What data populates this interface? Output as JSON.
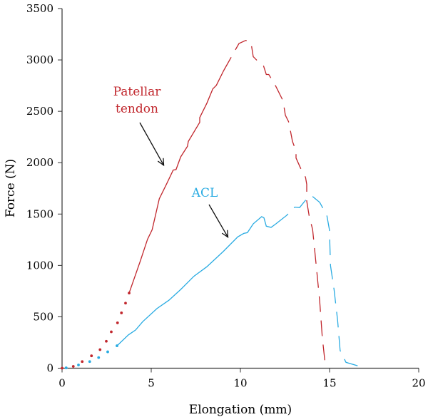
{
  "chart_data": {
    "type": "line",
    "title": "",
    "xlabel": "Elongation (mm)",
    "ylabel": "Force (N)",
    "xlim": [
      0,
      20
    ],
    "ylim": [
      0,
      3500
    ],
    "xticks": [
      0,
      5,
      10,
      15,
      20
    ],
    "yticks": [
      0,
      500,
      1000,
      1500,
      2000,
      2500,
      3000,
      3500
    ],
    "grid": false,
    "series": [
      {
        "name": "Patellar tendon",
        "color": "#c1272d",
        "dotted_points": [
          [
            0,
            0
          ],
          [
            0.63,
            17
          ],
          [
            1.13,
            64
          ],
          [
            1.65,
            120
          ],
          [
            2.13,
            180
          ],
          [
            2.48,
            262
          ],
          [
            2.76,
            354
          ],
          [
            3.11,
            441
          ],
          [
            3.33,
            538
          ],
          [
            3.56,
            633
          ],
          [
            3.76,
            731
          ]
        ],
        "solid_points": [
          [
            3.76,
            731
          ],
          [
            4.39,
            1045
          ],
          [
            4.79,
            1254
          ],
          [
            5.05,
            1347
          ],
          [
            5.45,
            1649
          ],
          [
            5.85,
            1789
          ],
          [
            6.23,
            1928
          ],
          [
            6.39,
            1933
          ],
          [
            6.65,
            2056
          ],
          [
            7.03,
            2160
          ],
          [
            7.08,
            2207
          ],
          [
            7.72,
            2393
          ],
          [
            7.72,
            2439
          ],
          [
            8.12,
            2579
          ],
          [
            8.45,
            2718
          ],
          [
            8.65,
            2753
          ],
          [
            9.05,
            2893
          ]
        ],
        "dashed_points": [
          [
            9.05,
            2893
          ],
          [
            9.92,
            3160
          ],
          [
            10.3,
            3190
          ],
          [
            10.59,
            3172
          ],
          [
            10.72,
            3032
          ],
          [
            11.12,
            2962
          ],
          [
            11.3,
            2940
          ],
          [
            11.45,
            2858
          ],
          [
            11.59,
            2858
          ],
          [
            11.99,
            2742
          ],
          [
            12.39,
            2602
          ],
          [
            12.52,
            2463
          ],
          [
            12.7,
            2400
          ],
          [
            12.79,
            2323
          ],
          [
            12.92,
            2207
          ],
          [
            13.12,
            2114
          ],
          [
            13.12,
            2045
          ],
          [
            13.39,
            1940
          ],
          [
            13.65,
            1858
          ],
          [
            13.72,
            1789
          ],
          [
            13.72,
            1626
          ],
          [
            13.85,
            1487
          ],
          [
            14.05,
            1347
          ],
          [
            14.25,
            999
          ],
          [
            14.45,
            650
          ],
          [
            14.59,
            301
          ],
          [
            14.75,
            45
          ]
        ]
      },
      {
        "name": "ACL",
        "color": "#29abe2",
        "dotted_points": [
          [
            0.23,
            3
          ],
          [
            0.92,
            31
          ],
          [
            1.55,
            64
          ],
          [
            2.05,
            103
          ],
          [
            2.56,
            159
          ],
          [
            3.08,
            218
          ]
        ],
        "solid_points": [
          [
            3.08,
            218
          ],
          [
            3.72,
            324
          ],
          [
            4.12,
            371
          ],
          [
            4.52,
            452
          ],
          [
            5.32,
            580
          ],
          [
            5.99,
            661
          ],
          [
            6.65,
            766
          ],
          [
            7.39,
            894
          ],
          [
            8.12,
            987
          ],
          [
            9.05,
            1138
          ],
          [
            9.85,
            1278
          ],
          [
            10.19,
            1312
          ],
          [
            10.39,
            1319
          ],
          [
            10.72,
            1405
          ],
          [
            11.19,
            1475
          ],
          [
            11.32,
            1463
          ],
          [
            11.45,
            1382
          ],
          [
            11.72,
            1370
          ],
          [
            11.99,
            1405
          ]
        ],
        "dashed_points": [
          [
            11.99,
            1405
          ],
          [
            12.59,
            1487
          ],
          [
            13.05,
            1568
          ],
          [
            13.32,
            1563
          ],
          [
            13.72,
            1649
          ],
          [
            13.99,
            1679
          ],
          [
            14.45,
            1614
          ],
          [
            14.85,
            1487
          ],
          [
            14.99,
            1347
          ],
          [
            15.05,
            999
          ],
          [
            15.25,
            766
          ],
          [
            15.45,
            464
          ],
          [
            15.59,
            173
          ],
          [
            15.92,
            57
          ],
          [
            16.85,
            10
          ]
        ]
      }
    ],
    "annotations": [
      {
        "text_lines": [
          "Patellar",
          "tendon"
        ],
        "series": "Patellar tendon",
        "arrow_to": [
          5.7,
          1975
        ]
      },
      {
        "text_lines": [
          "ACL"
        ],
        "series": "ACL",
        "arrow_to": [
          9.3,
          1275
        ]
      }
    ]
  }
}
